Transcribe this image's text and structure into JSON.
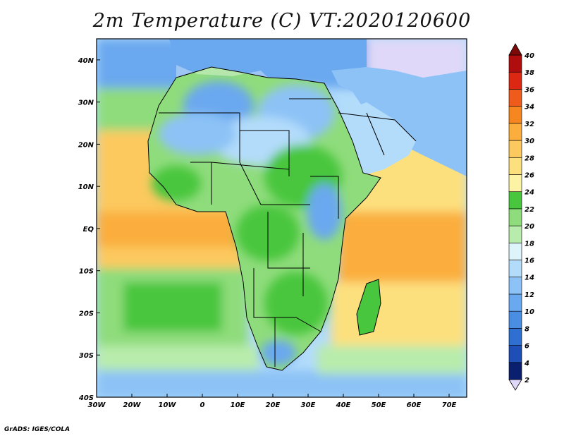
{
  "title": "2m Temperature (C) VT:2020120600",
  "credit": "GrADS: IGES/COLA",
  "map": {
    "projection": "lat-lon",
    "lon_range": [
      -30,
      75
    ],
    "lat_range": [
      -40,
      45
    ],
    "lat_labels": [
      {
        "text": "40N",
        "lat": 40
      },
      {
        "text": "30N",
        "lat": 30
      },
      {
        "text": "20N",
        "lat": 20
      },
      {
        "text": "10N",
        "lat": 10
      },
      {
        "text": "EQ",
        "lat": 0
      },
      {
        "text": "10S",
        "lat": -10
      },
      {
        "text": "20S",
        "lat": -20
      },
      {
        "text": "30S",
        "lat": -30
      },
      {
        "text": "40S",
        "lat": -40
      }
    ],
    "lon_labels": [
      {
        "text": "30W",
        "lon": -30
      },
      {
        "text": "20W",
        "lon": -20
      },
      {
        "text": "10W",
        "lon": -10
      },
      {
        "text": "0",
        "lon": 0
      },
      {
        "text": "10E",
        "lon": 10
      },
      {
        "text": "20E",
        "lon": 20
      },
      {
        "text": "30E",
        "lon": 30
      },
      {
        "text": "40E",
        "lon": 40
      },
      {
        "text": "50E",
        "lon": 50
      },
      {
        "text": "60E",
        "lon": 60
      },
      {
        "text": "70E",
        "lon": 70
      }
    ]
  },
  "colorbar": {
    "labels": [
      "2",
      "4",
      "6",
      "8",
      "10",
      "12",
      "14",
      "16",
      "18",
      "20",
      "22",
      "24",
      "26",
      "28",
      "30",
      "32",
      "34",
      "36",
      "38",
      "40"
    ],
    "colors": [
      "#e0d8f8",
      "#0a1f6e",
      "#1d4fb6",
      "#2f6fd2",
      "#4a8ee3",
      "#6aa8ef",
      "#8cc2f6",
      "#b3dcfb",
      "#dcf4fa",
      "#b8ecac",
      "#8fdc7c",
      "#48c63e",
      "#fdf3a4",
      "#fde07e",
      "#fcc95e",
      "#fbae3e",
      "#f58620",
      "#ee5b1a",
      "#dc2812",
      "#b00e0e",
      "#7c0a08"
    ]
  }
}
